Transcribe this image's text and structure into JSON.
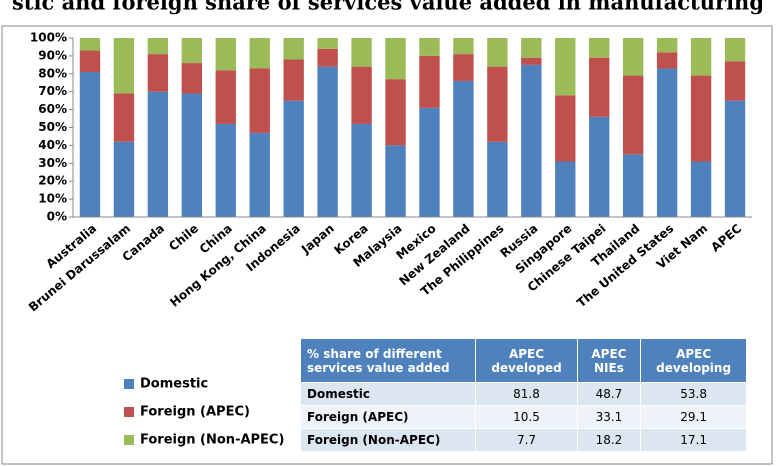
{
  "title": "stic and foreign share of services value added in manufacturing",
  "chart_data": {
    "type": "stacked-bar",
    "categories": [
      "Australia",
      "Brunei Darussalam",
      "Canada",
      "Chile",
      "China",
      "Hong Kong, China",
      "Indonesia",
      "Japan",
      "Korea",
      "Malaysia",
      "Mexico",
      "New Zealand",
      "The Philippines",
      "Russia",
      "Singapore",
      "Chinese Taipei",
      "Thailand",
      "The United States",
      "Viet Nam",
      "APEC"
    ],
    "series": [
      {
        "name": "Domestic",
        "color": "#4f81bd",
        "values": [
          81,
          42,
          70,
          69,
          52,
          47,
          65,
          84,
          52,
          40,
          61,
          76,
          42,
          85,
          31,
          56,
          35,
          83,
          31,
          65
        ]
      },
      {
        "name": "Foreign (APEC)",
        "color": "#c0504d",
        "values": [
          12,
          27,
          21,
          17,
          30,
          36,
          23,
          10,
          32,
          37,
          29,
          15,
          42,
          4,
          37,
          33,
          44,
          9,
          48,
          22
        ]
      },
      {
        "name": "Foreign (Non-APEC)",
        "color": "#9bbb59",
        "values": [
          7,
          31,
          9,
          14,
          18,
          17,
          12,
          6,
          16,
          23,
          10,
          9,
          16,
          11,
          32,
          11,
          21,
          8,
          21,
          13
        ]
      }
    ],
    "ylim": [
      0,
      100
    ],
    "yticks": [
      {
        "value": 0,
        "label": "0%"
      },
      {
        "value": 10,
        "label": "10%"
      },
      {
        "value": 20,
        "label": "20%"
      },
      {
        "value": 30,
        "label": "30%"
      },
      {
        "value": 40,
        "label": "40%"
      },
      {
        "value": 50,
        "label": "50%"
      },
      {
        "value": 60,
        "label": "60%"
      },
      {
        "value": 70,
        "label": "70%"
      },
      {
        "value": 80,
        "label": "80%"
      },
      {
        "value": 90,
        "label": "90%"
      },
      {
        "value": 100,
        "label": "100%"
      }
    ],
    "grid": false
  },
  "table": {
    "header": [
      "% share of different services value added",
      "APEC developed",
      "APEC NIEs",
      "APEC developing"
    ],
    "rows": [
      [
        "Domestic",
        81.8,
        48.7,
        53.8
      ],
      [
        "Foreign (APEC)",
        10.5,
        33.1,
        29.1
      ],
      [
        "Foreign (Non-APEC)",
        7.7,
        18.2,
        17.1
      ]
    ]
  }
}
